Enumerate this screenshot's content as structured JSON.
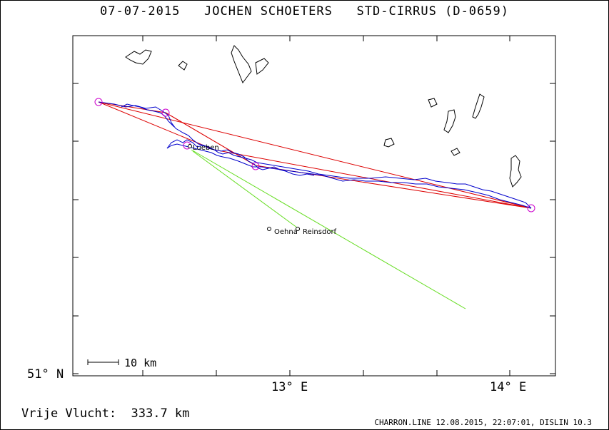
{
  "header": {
    "title": "07-07-2015   JOCHEN SCHOETERS   STD-CIRRUS (D-0659)"
  },
  "axes": {
    "lat_label": "51° N",
    "lon_labels": [
      "13° E",
      "14° E"
    ]
  },
  "scale": {
    "label": "10 km"
  },
  "places": [
    {
      "name": "Lueben"
    },
    {
      "name": "Oehna"
    },
    {
      "name": "Reinsdorf"
    }
  ],
  "footer": {
    "flight": "Vrije Vlucht:  333.7 km",
    "credit": "CHARRON.LINE 12.08.2015, 22:07:01, DISLIN 10.3"
  },
  "colors": {
    "track": "#0000cc",
    "task": "#dd0000",
    "turnpoint": "#cc00cc",
    "glide": "#66dd22",
    "lakes": "#000000"
  }
}
